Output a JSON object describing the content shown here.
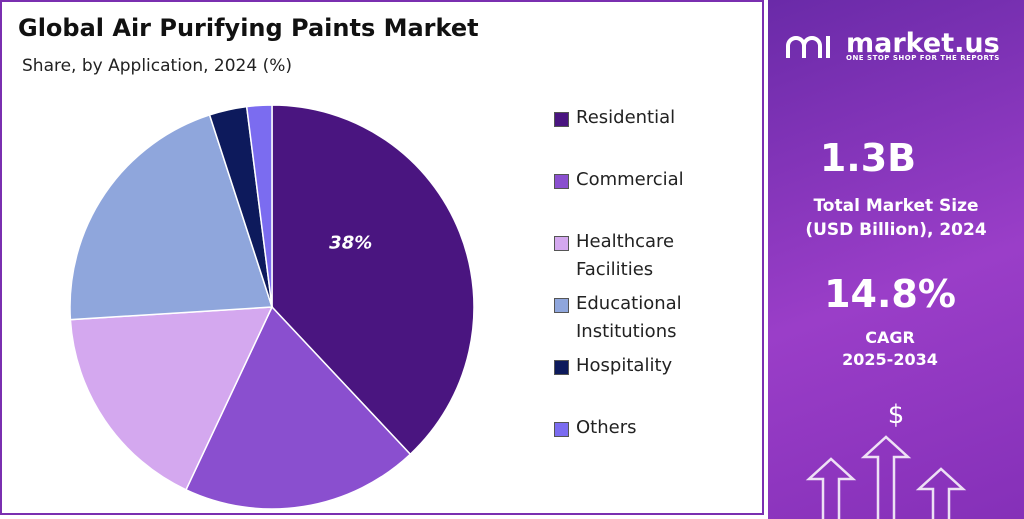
{
  "chart_data": {
    "type": "pie",
    "title": "Global Air Purifying Paints Market",
    "subtitle": "Share, by Application, 2024 (%)",
    "categories": [
      "Residential",
      "Commercial",
      "Healthcare Facilities",
      "Educational Institutions",
      "Hospitality",
      "Others"
    ],
    "values": [
      38,
      19,
      17,
      21,
      3,
      2
    ],
    "value_labels": [
      "38%",
      null,
      null,
      null,
      null,
      null
    ],
    "colors": [
      "#4a1580",
      "#8a4fcf",
      "#d4a8ef",
      "#8fa6dc",
      "#0d1a5c",
      "#7b6cf0"
    ]
  },
  "panel": {
    "brand": "market.us",
    "tagline": "ONE STOP SHOP FOR THE REPORTS",
    "market_size": "1.3B",
    "market_size_label": [
      "Total Market Size",
      "(USD Billion), 2024"
    ],
    "cagr": "14.8%",
    "cagr_label": [
      "CAGR",
      "2025-2034"
    ],
    "icon": "$"
  }
}
